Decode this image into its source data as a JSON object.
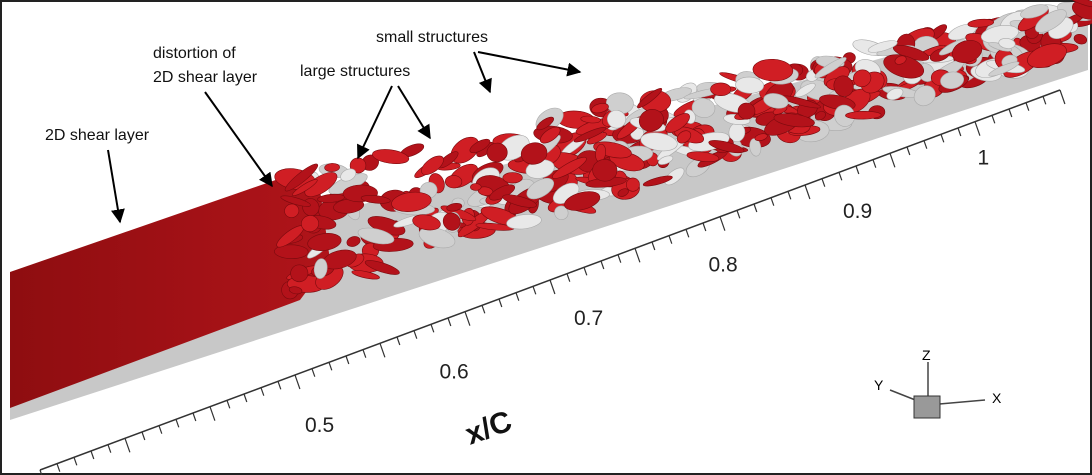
{
  "annotations": {
    "shear_layer": "2D shear layer",
    "distortion": [
      "distortion of",
      "2D shear layer"
    ],
    "large": "large structures",
    "small": "small structures"
  },
  "axis": {
    "label": "x/C",
    "ticks": [
      "0.5",
      "0.6",
      "0.7",
      "0.8",
      "0.9",
      "1"
    ]
  },
  "triad": {
    "z": "Z",
    "y": "Y",
    "x": "X"
  }
}
